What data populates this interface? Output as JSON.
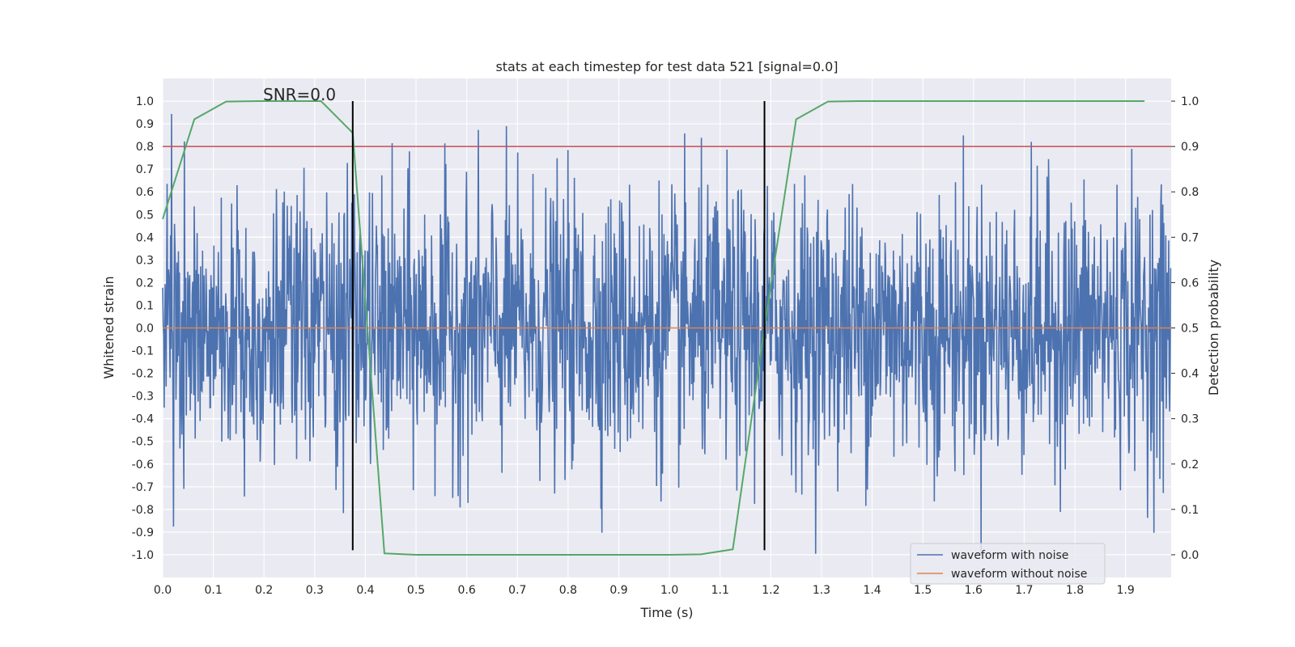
{
  "chart_data": {
    "type": "line",
    "title": "stats at each timestep for test data 521 [signal=0.0]",
    "xlabel": "Time (s)",
    "ylabel": "Whitened strain",
    "y2label": "Detection probability",
    "annotation": "SNR=0.0",
    "xlim": [
      0.0,
      1.99
    ],
    "ylim": [
      -1.1,
      1.1
    ],
    "y2lim": [
      -0.05,
      1.05
    ],
    "x_ticks": [
      "0.0",
      "0.1",
      "0.2",
      "0.3",
      "0.4",
      "0.5",
      "0.6",
      "0.7",
      "0.8",
      "0.9",
      "1.0",
      "1.1",
      "1.2",
      "1.3",
      "1.4",
      "1.5",
      "1.6",
      "1.7",
      "1.8",
      "1.9"
    ],
    "y_ticks": [
      "1.0",
      "0.9",
      "0.8",
      "0.7",
      "0.6",
      "0.5",
      "0.4",
      "0.3",
      "0.2",
      "0.1",
      "0.0",
      "-0.1",
      "-0.2",
      "-0.3",
      "-0.4",
      "-0.5",
      "-0.6",
      "-0.7",
      "-0.8",
      "-0.9",
      "-1.0"
    ],
    "y2_ticks": [
      "1.0",
      "0.9",
      "0.8",
      "0.7",
      "0.6",
      "0.5",
      "0.4",
      "0.3",
      "0.2",
      "0.1",
      "0.0"
    ],
    "grid": true,
    "legend_position": "bottom-right",
    "series": [
      {
        "name": "waveform with noise",
        "color": "#4c72b0",
        "axis": "left",
        "kind": "noise",
        "samples": 2048,
        "amplitude_range": [
          -1.0,
          1.0
        ]
      },
      {
        "name": "waveform without noise",
        "color": "#dd8452",
        "axis": "left",
        "x": [
          0.0,
          1.99
        ],
        "y": [
          0.0,
          0.0
        ]
      },
      {
        "color": "#55a868",
        "axis": "right",
        "x": [
          0.0,
          0.0625,
          0.125,
          0.1875,
          0.25,
          0.3125,
          0.375,
          0.4375,
          0.5,
          0.5625,
          0.625,
          0.6875,
          0.75,
          0.8125,
          0.875,
          0.9375,
          1.0,
          1.0625,
          1.125,
          1.1875,
          1.25,
          1.3125,
          1.375,
          1.4375,
          1.5,
          1.5625,
          1.625,
          1.6875,
          1.75,
          1.8125,
          1.875,
          1.9375
        ],
        "y": [
          0.74,
          0.96,
          0.999,
          1.0,
          1.0,
          1.0,
          0.93,
          0.003,
          0.0,
          0.0,
          0.0,
          0.0,
          0.0,
          0.0,
          0.0,
          0.0,
          0.0,
          0.001,
          0.012,
          0.5,
          0.96,
          0.999,
          1.0,
          1.0,
          1.0,
          1.0,
          1.0,
          1.0,
          1.0,
          1.0,
          1.0,
          1.0
        ]
      }
    ],
    "threshold_line": {
      "axis": "right",
      "value": 0.9,
      "color": "#c44e52"
    },
    "event_lines": {
      "x": [
        0.375,
        1.1875
      ],
      "ymin": -0.98,
      "ymax": 1.0,
      "color": "#000000"
    }
  }
}
